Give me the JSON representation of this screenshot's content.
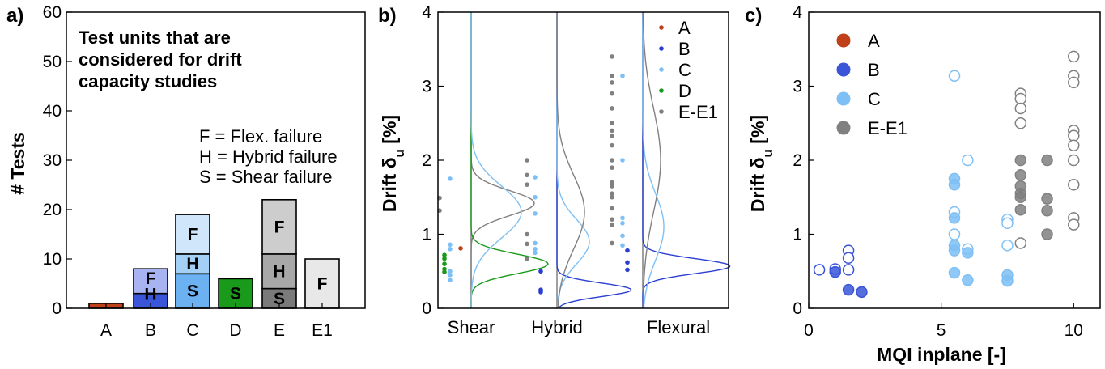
{
  "panels": {
    "a": {
      "label": "a)",
      "ylabel": "# Tests",
      "ylim": [
        0,
        60
      ],
      "yticks": [
        0,
        10,
        20,
        30,
        40,
        50,
        60
      ],
      "note": [
        "Test units that are",
        "considered for drift",
        "capacity studies"
      ],
      "key": [
        "F = Flex. failure",
        "H = Hybrid failure",
        "S = Shear failure"
      ]
    },
    "b": {
      "label": "b)",
      "ylabel": "Drift δu [%]",
      "ylim": [
        0,
        4
      ],
      "yticks": [
        0,
        1,
        2,
        3,
        4
      ],
      "groups": [
        "Shear",
        "Hybrid",
        "Flexural"
      ],
      "legend": [
        "A",
        "B",
        "C",
        "D",
        "E-E1"
      ]
    },
    "c": {
      "label": "c)",
      "ylabel": "Drift δu [%]",
      "xlabel": "MQI inplane [-]",
      "xlim": [
        0,
        11
      ],
      "ylim": [
        0,
        4
      ],
      "xticks": [
        0,
        5,
        10
      ],
      "yticks": [
        0,
        1,
        2,
        3,
        4
      ],
      "legend": [
        "A",
        "B",
        "C",
        "E-E1"
      ]
    }
  },
  "chart_data": [
    {
      "type": "bar",
      "stacked": true,
      "categories": [
        "A",
        "B",
        "C",
        "D",
        "E",
        "E1"
      ],
      "ylim": [
        0,
        60
      ],
      "stacks": [
        {
          "category": "A",
          "segments": [
            {
              "mode": "",
              "value": 1,
              "color": "#c0401a"
            }
          ]
        },
        {
          "category": "B",
          "segments": [
            {
              "mode": "",
              "value": 3,
              "color": "#3a55d8"
            },
            {
              "mode": "H",
              "value": 0,
              "color": "#6b80e8"
            },
            {
              "mode": "F",
              "value": 5,
              "color": "#a8b4f2"
            }
          ]
        },
        {
          "category": "C",
          "segments": [
            {
              "mode": "S",
              "value": 7,
              "color": "#6cb2f2"
            },
            {
              "mode": "H",
              "value": 4,
              "color": "#a4d0f6"
            },
            {
              "mode": "F",
              "value": 8,
              "color": "#cfe6fb"
            }
          ]
        },
        {
          "category": "D",
          "segments": [
            {
              "mode": "S",
              "value": 6,
              "color": "#1a9a1a"
            }
          ]
        },
        {
          "category": "E",
          "segments": [
            {
              "mode": "S",
              "value": 4,
              "color": "#7a7a7a"
            },
            {
              "mode": "H",
              "value": 7,
              "color": "#a8a8a8"
            },
            {
              "mode": "F",
              "value": 11,
              "color": "#cdcdcd"
            }
          ]
        },
        {
          "category": "E1",
          "segments": [
            {
              "mode": "F",
              "value": 10,
              "color": "#e8e8e8"
            }
          ]
        }
      ]
    },
    {
      "type": "scatter",
      "ylim": [
        0,
        4
      ],
      "groups": [
        "Shear",
        "Hybrid",
        "Flexural"
      ],
      "colors": {
        "A": "#c0401a",
        "B": "#2a3fd0",
        "C": "#7ec0f5",
        "D": "#1a9a1a",
        "E-E1": "#808080"
      },
      "points": [
        {
          "group": "Shear",
          "unit": "E-E1",
          "y": [
            1.49,
            1.32
          ]
        },
        {
          "group": "Shear",
          "unit": "D",
          "y": [
            0.72,
            0.67,
            0.6,
            0.53,
            0.49
          ]
        },
        {
          "group": "Shear",
          "unit": "C",
          "y": [
            1.75,
            0.86,
            0.8,
            0.5,
            0.45,
            0.38
          ]
        },
        {
          "group": "Shear",
          "unit": "A",
          "y": [
            0.81
          ]
        },
        {
          "group": "Hybrid",
          "unit": "E-E1",
          "y": [
            2.0,
            1.8,
            1.67,
            1.0,
            0.87,
            0.67
          ]
        },
        {
          "group": "Hybrid",
          "unit": "C",
          "y": [
            1.77,
            1.5,
            1.28,
            0.88,
            0.8,
            0.75
          ]
        },
        {
          "group": "Hybrid",
          "unit": "B",
          "y": [
            0.5,
            0.25,
            0.22
          ]
        },
        {
          "group": "Flexural",
          "unit": "E-E1",
          "y": [
            3.4,
            3.14,
            3.05,
            2.9,
            2.7,
            2.5,
            2.4,
            2.33,
            2.2,
            2.0,
            1.9,
            1.7,
            1.65,
            1.55,
            1.5,
            1.35,
            1.2,
            1.13,
            0.88
          ]
        },
        {
          "group": "Flexural",
          "unit": "C",
          "y": [
            3.14,
            2.0,
            1.22,
            1.15,
            0.98,
            0.85
          ]
        },
        {
          "group": "Flexural",
          "unit": "B",
          "y": [
            0.78,
            0.62,
            0.52
          ]
        }
      ],
      "density_curves": [
        {
          "group": "Shear",
          "unit": "E-E1",
          "peak": 1.42
        },
        {
          "group": "Shear",
          "unit": "D",
          "peak": 0.6
        },
        {
          "group": "Shear",
          "unit": "C",
          "peak": 1.3
        },
        {
          "group": "Hybrid",
          "unit": "B",
          "peak": 0.25
        },
        {
          "group": "Hybrid",
          "unit": "C",
          "peak": 0.9
        },
        {
          "group": "Hybrid",
          "unit": "E-E1",
          "peak": 1.3
        },
        {
          "group": "Flexural",
          "unit": "B",
          "peak": 0.57
        },
        {
          "group": "Flexural",
          "unit": "C",
          "peak": 1.1
        },
        {
          "group": "Flexural",
          "unit": "E-E1",
          "peak": 2.0
        }
      ]
    },
    {
      "type": "scatter",
      "xlabel": "MQI inplane [-]",
      "ylabel": "Drift δu [%]",
      "xlim": [
        0,
        11
      ],
      "ylim": [
        0,
        4
      ],
      "series": [
        {
          "name": "A",
          "color": "#c0401a",
          "points": []
        },
        {
          "name": "B",
          "color": "#3a55d8",
          "points": [
            {
              "x": 0.4,
              "y": 0.52,
              "filled": false
            },
            {
              "x": 1.0,
              "y": 0.53,
              "filled": false
            },
            {
              "x": 1.0,
              "y": 0.49,
              "filled": true
            },
            {
              "x": 1.5,
              "y": 0.78,
              "filled": false
            },
            {
              "x": 1.5,
              "y": 0.68,
              "filled": false
            },
            {
              "x": 1.5,
              "y": 0.52,
              "filled": false
            },
            {
              "x": 1.5,
              "y": 0.25,
              "filled": true
            },
            {
              "x": 2.0,
              "y": 0.22,
              "filled": true
            }
          ]
        },
        {
          "name": "C",
          "color": "#7ec0f5",
          "points": [
            {
              "x": 5.5,
              "y": 3.14,
              "filled": false
            },
            {
              "x": 6.0,
              "y": 2.0,
              "filled": false
            },
            {
              "x": 5.5,
              "y": 1.75,
              "filled": true
            },
            {
              "x": 5.5,
              "y": 1.67,
              "filled": true
            },
            {
              "x": 5.5,
              "y": 1.3,
              "filled": false
            },
            {
              "x": 5.5,
              "y": 1.22,
              "filled": true
            },
            {
              "x": 5.5,
              "y": 1.0,
              "filled": false
            },
            {
              "x": 5.5,
              "y": 0.85,
              "filled": true
            },
            {
              "x": 5.5,
              "y": 0.78,
              "filled": true
            },
            {
              "x": 5.5,
              "y": 0.48,
              "filled": true
            },
            {
              "x": 6.0,
              "y": 0.8,
              "filled": false
            },
            {
              "x": 6.0,
              "y": 0.75,
              "filled": true
            },
            {
              "x": 6.0,
              "y": 0.38,
              "filled": true
            },
            {
              "x": 7.5,
              "y": 1.2,
              "filled": false
            },
            {
              "x": 7.5,
              "y": 1.15,
              "filled": false
            },
            {
              "x": 7.5,
              "y": 0.85,
              "filled": false
            },
            {
              "x": 7.5,
              "y": 0.45,
              "filled": true
            },
            {
              "x": 7.5,
              "y": 0.37,
              "filled": true
            }
          ]
        },
        {
          "name": "E-E1",
          "color": "#808080",
          "points": [
            {
              "x": 8.0,
              "y": 2.9,
              "filled": false
            },
            {
              "x": 8.0,
              "y": 2.83,
              "filled": false
            },
            {
              "x": 8.0,
              "y": 2.7,
              "filled": false
            },
            {
              "x": 8.0,
              "y": 2.5,
              "filled": false
            },
            {
              "x": 8.0,
              "y": 2.0,
              "filled": true
            },
            {
              "x": 8.0,
              "y": 1.8,
              "filled": true
            },
            {
              "x": 8.0,
              "y": 1.65,
              "filled": true
            },
            {
              "x": 8.0,
              "y": 1.55,
              "filled": true
            },
            {
              "x": 8.0,
              "y": 1.5,
              "filled": true
            },
            {
              "x": 8.0,
              "y": 1.33,
              "filled": true
            },
            {
              "x": 8.0,
              "y": 0.88,
              "filled": false
            },
            {
              "x": 9.0,
              "y": 2.0,
              "filled": true
            },
            {
              "x": 9.0,
              "y": 1.48,
              "filled": true
            },
            {
              "x": 9.0,
              "y": 1.32,
              "filled": true
            },
            {
              "x": 9.0,
              "y": 1.0,
              "filled": true
            },
            {
              "x": 10.0,
              "y": 3.4,
              "filled": false
            },
            {
              "x": 10.0,
              "y": 3.14,
              "filled": false
            },
            {
              "x": 10.0,
              "y": 3.05,
              "filled": false
            },
            {
              "x": 10.0,
              "y": 2.4,
              "filled": false
            },
            {
              "x": 10.0,
              "y": 2.33,
              "filled": false
            },
            {
              "x": 10.0,
              "y": 2.2,
              "filled": false
            },
            {
              "x": 10.0,
              "y": 2.0,
              "filled": false
            },
            {
              "x": 10.0,
              "y": 1.67,
              "filled": false
            },
            {
              "x": 10.0,
              "y": 1.22,
              "filled": false
            },
            {
              "x": 10.0,
              "y": 1.13,
              "filled": false
            }
          ]
        }
      ]
    }
  ]
}
